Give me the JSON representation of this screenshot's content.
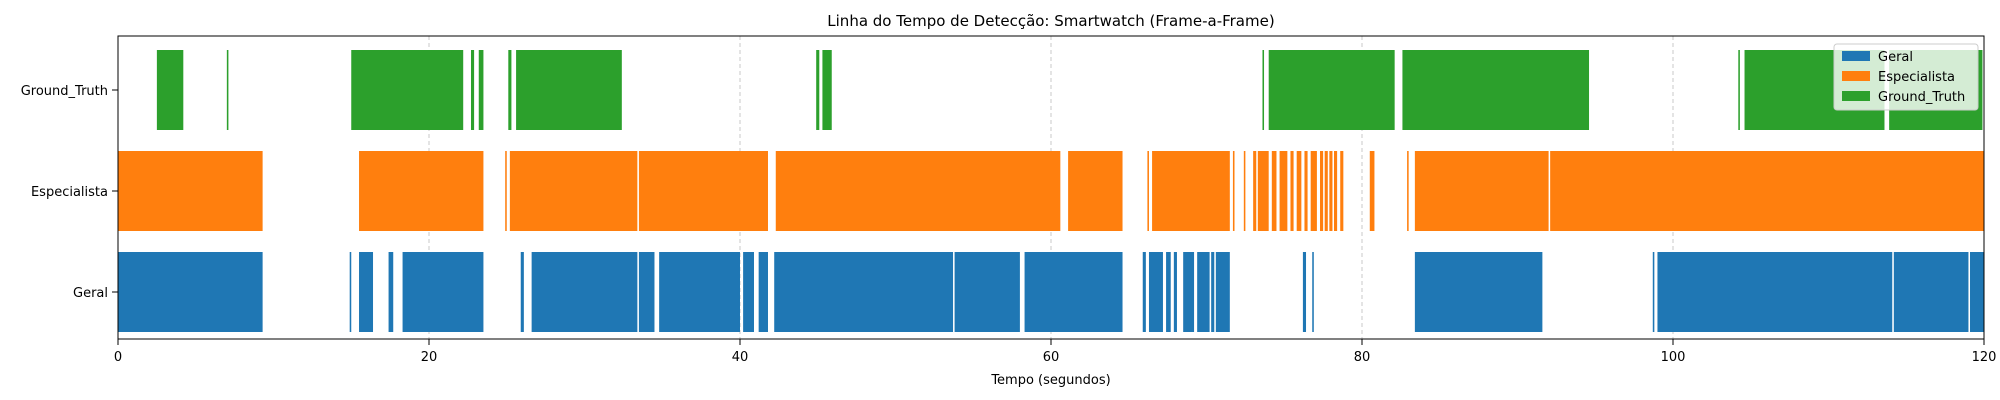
{
  "chart_data": {
    "type": "timeline",
    "title": "Linha do Tempo de Detecção: Smartwatch (Frame-a-Frame)",
    "xlabel": "Tempo (segundos)",
    "ylabel": "",
    "xlim": [
      0,
      120
    ],
    "xticks": [
      0,
      20,
      40,
      60,
      80,
      100,
      120
    ],
    "grid": "x-only, dashed",
    "legend_position": "top-right",
    "categories": [
      "Geral",
      "Especialista",
      "Ground_Truth"
    ],
    "series": [
      {
        "name": "Geral",
        "color": "#1f77b4",
        "intervals": [
          [
            0,
            9.3
          ],
          [
            14.9,
            15.0
          ],
          [
            15.5,
            16.4
          ],
          [
            17.4,
            17.7
          ],
          [
            18.3,
            23.5
          ],
          [
            25.9,
            26.1
          ],
          [
            26.6,
            33.4
          ],
          [
            33.5,
            34.5
          ],
          [
            34.8,
            40.0
          ],
          [
            40.2,
            40.9
          ],
          [
            41.2,
            41.8
          ],
          [
            42.2,
            53.7
          ],
          [
            53.8,
            58.0
          ],
          [
            58.3,
            64.6
          ],
          [
            65.9,
            66.1
          ],
          [
            66.3,
            67.2
          ],
          [
            67.4,
            67.7
          ],
          [
            67.9,
            68.1
          ],
          [
            68.5,
            69.2
          ],
          [
            69.4,
            70.2
          ],
          [
            70.3,
            70.5
          ],
          [
            70.6,
            71.5
          ],
          [
            76.2,
            76.4
          ],
          [
            76.8,
            76.9
          ],
          [
            83.4,
            91.6
          ],
          [
            98.7,
            98.8
          ],
          [
            99.0,
            114.1
          ],
          [
            114.2,
            119.0
          ],
          [
            119.1,
            120
          ]
        ]
      },
      {
        "name": "Especialista",
        "color": "#ff7f0e",
        "intervals": [
          [
            0,
            9.3
          ],
          [
            15.5,
            23.5
          ],
          [
            24.9,
            25.0
          ],
          [
            25.2,
            33.4
          ],
          [
            33.5,
            41.8
          ],
          [
            42.3,
            60.6
          ],
          [
            61.1,
            64.6
          ],
          [
            66.2,
            66.3
          ],
          [
            66.5,
            71.5
          ],
          [
            71.7,
            71.8
          ],
          [
            72.4,
            72.5
          ],
          [
            73.0,
            73.2
          ],
          [
            73.3,
            74.0
          ],
          [
            74.2,
            74.5
          ],
          [
            74.7,
            75.2
          ],
          [
            75.4,
            75.6
          ],
          [
            75.8,
            76.1
          ],
          [
            76.3,
            76.5
          ],
          [
            76.7,
            77.1
          ],
          [
            77.3,
            77.5
          ],
          [
            77.6,
            77.8
          ],
          [
            77.9,
            78.1
          ],
          [
            78.2,
            78.4
          ],
          [
            78.6,
            78.8
          ],
          [
            80.5,
            80.8
          ],
          [
            82.9,
            83.0
          ],
          [
            83.4,
            92.0
          ],
          [
            92.1,
            120
          ]
        ]
      },
      {
        "name": "Ground_Truth",
        "color": "#2ca02c",
        "intervals": [
          [
            2.5,
            4.2
          ],
          [
            7.0,
            7.1
          ],
          [
            15.0,
            22.2
          ],
          [
            22.7,
            22.9
          ],
          [
            23.2,
            23.5
          ],
          [
            25.1,
            25.3
          ],
          [
            25.6,
            32.4
          ],
          [
            44.9,
            45.1
          ],
          [
            45.3,
            45.9
          ],
          [
            73.6,
            73.7
          ],
          [
            74.0,
            82.1
          ],
          [
            82.6,
            94.6
          ],
          [
            104.2,
            104.3
          ],
          [
            104.6,
            113.6
          ],
          [
            113.9,
            119.9
          ]
        ]
      }
    ]
  }
}
